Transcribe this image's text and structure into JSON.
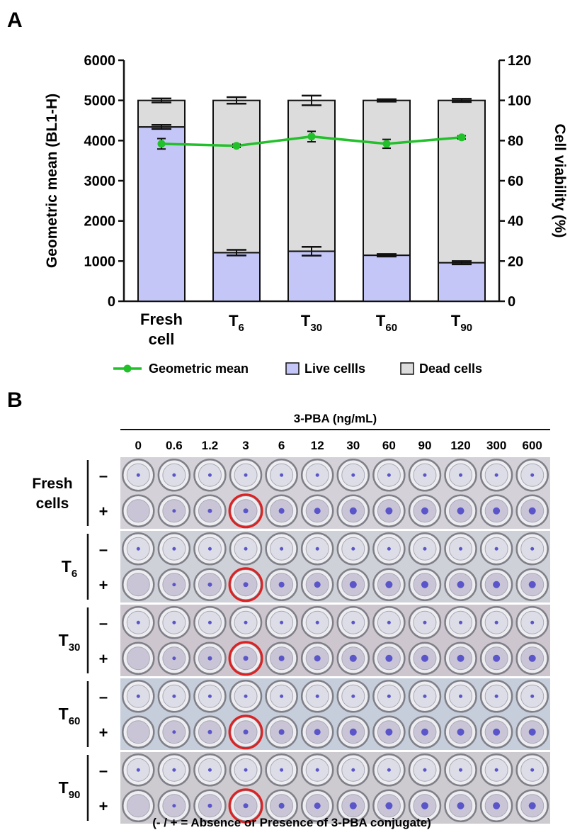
{
  "panel_a_label": "A",
  "panel_b_label": "B",
  "chart_data": {
    "type": "bar",
    "stacked": true,
    "categories": [
      "Fresh cell",
      "T6",
      "T30",
      "T60",
      "T90"
    ],
    "category_labels": [
      {
        "main": "Fresh",
        "main2": "cell",
        "sub": ""
      },
      {
        "main": "T",
        "sub": "6"
      },
      {
        "main": "T",
        "sub": "30"
      },
      {
        "main": "T",
        "sub": "60"
      },
      {
        "main": "T",
        "sub": "90"
      }
    ],
    "ylabel": "Geometric mean (BL1-H)",
    "y2label": "Cell viability (%)",
    "ylim": [
      0,
      6000
    ],
    "y2lim": [
      0,
      120
    ],
    "yticks": [
      0,
      1000,
      2000,
      3000,
      4000,
      5000,
      6000
    ],
    "y2ticks": [
      0,
      20,
      40,
      60,
      80,
      100,
      120
    ],
    "grid": false,
    "legend_position": "bottom",
    "series": [
      {
        "name": "Live cellls",
        "type": "bar",
        "axis": "right",
        "color": "#c4c6f7",
        "values": [
          86.8,
          24.2,
          24.9,
          22.9,
          19.2
        ],
        "errors": [
          1.0,
          1.4,
          2.2,
          0.6,
          0.8
        ]
      },
      {
        "name": "Dead cells",
        "type": "bar",
        "axis": "right",
        "color": "#dcdcdc",
        "values": [
          13.2,
          75.8,
          75.1,
          77.1,
          80.8
        ],
        "errors": [
          1.0,
          1.6,
          2.4,
          0.6,
          0.8
        ]
      },
      {
        "name": "Geometric mean",
        "type": "line",
        "axis": "left",
        "color": "#22c02a",
        "values": [
          3920,
          3870,
          4100,
          3920,
          4080
        ],
        "errors": [
          130,
          40,
          130,
          110,
          40
        ]
      }
    ]
  },
  "plate": {
    "header": "3-PBA (ng/mL)",
    "concentrations": [
      "0",
      "0.6",
      "1.2",
      "3",
      "6",
      "12",
      "30",
      "60",
      "90",
      "120",
      "300",
      "600"
    ],
    "groups": [
      {
        "label_main": "Fresh",
        "label_main2": "cells",
        "label_sub": "",
        "tint": "#d4d2d8"
      },
      {
        "label_main": "T",
        "label_sub": "6",
        "tint": "#cfd1d9"
      },
      {
        "label_main": "T",
        "label_sub": "30",
        "tint": "#cdc6cf"
      },
      {
        "label_main": "T",
        "label_sub": "60",
        "tint": "#c6cedb"
      },
      {
        "label_main": "T",
        "label_sub": "90",
        "tint": "#cdcbd0"
      }
    ],
    "row_signs": [
      "–",
      "+"
    ],
    "highlight_column_index": 3,
    "highlight_color": "#e02020",
    "footnote": "(- / + = Absence or Presence of 3-PBA conjugate)"
  }
}
